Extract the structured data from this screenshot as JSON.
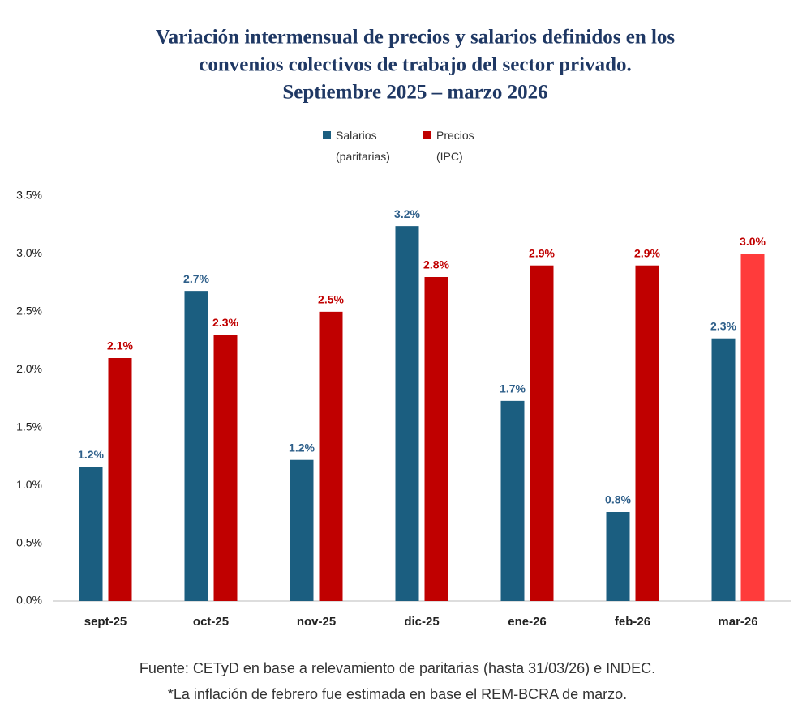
{
  "chart_data": {
    "type": "bar",
    "title": [
      "Variación intermensual de precios y salarios definidos en los",
      "convenios colectivos de trabajo del sector privado.",
      "Septiembre 2025 – marzo 2026"
    ],
    "categories": [
      "sept-25",
      "oct-25",
      "nov-25",
      "dic-25",
      "ene-26",
      "feb-26",
      "mar-26"
    ],
    "series": [
      {
        "name": "Salarios (paritarias)",
        "color": "#1b5e80",
        "label_color": "#2e5f8a",
        "values": [
          1.16,
          2.68,
          1.22,
          3.24,
          1.73,
          0.77,
          2.27
        ],
        "value_labels": [
          "1.2%",
          "2.7%",
          "1.2%",
          "3.2%",
          "1.7%",
          "0.8%",
          "2.3%"
        ]
      },
      {
        "name": "Precios (IPC)",
        "color": "#c00000",
        "label_color": "#c00000",
        "colors": [
          "#c00000",
          "#c00000",
          "#c00000",
          "#c00000",
          "#c00000",
          "#c00000",
          "#ff3b3b"
        ],
        "values": [
          2.1,
          2.3,
          2.5,
          2.8,
          2.9,
          2.9,
          3.0
        ],
        "value_labels": [
          "2.1%",
          "2.3%",
          "2.5%",
          "2.8%",
          "2.9%",
          "2.9%",
          "3.0%"
        ]
      }
    ],
    "ylim": [
      0,
      3.5
    ],
    "yticks": [
      {
        "value": 0,
        "label": "0.0%"
      },
      {
        "value": 0.5,
        "label": "0.5%"
      },
      {
        "value": 1,
        "label": "1.0%"
      },
      {
        "value": 1.5,
        "label": "1.5%"
      },
      {
        "value": 2,
        "label": "2.0%"
      },
      {
        "value": 2.5,
        "label": "2.5%"
      },
      {
        "value": 3,
        "label": "3.0%"
      },
      {
        "value": 3.5,
        "label": "3.5%"
      }
    ],
    "grid": false,
    "legend": "top",
    "source": "Fuente: CETyD en base a relevamiento de paritarias (hasta 31/03/26) e INDEC.",
    "note": "*La inflación de febrero fue estimada en base el REM-BCRA de marzo."
  }
}
